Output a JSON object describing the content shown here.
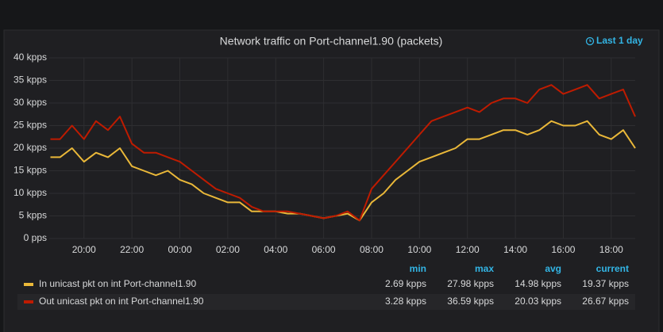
{
  "chart_data": {
    "type": "line",
    "title": "Network traffic on Port-channel1.90 (packets)",
    "time_range": "Last 1 day",
    "x": [
      18.6,
      19,
      19.5,
      20,
      20.5,
      21,
      21.5,
      22,
      22.5,
      23,
      23.5,
      24,
      24.5,
      25,
      25.5,
      26,
      26.5,
      27,
      27.5,
      28,
      28.5,
      29,
      29.5,
      30,
      30.5,
      31,
      31.5,
      32,
      32.5,
      33,
      33.5,
      34,
      34.5,
      35,
      35.5,
      36,
      36.5,
      37,
      37.5,
      38,
      38.5,
      39,
      39.5,
      40,
      40.5,
      41,
      41.5,
      42,
      42.5,
      43
    ],
    "xlim": [
      18.55,
      43.0
    ],
    "xticks": [
      {
        "value": 20,
        "label": "20:00"
      },
      {
        "value": 22,
        "label": "22:00"
      },
      {
        "value": 24,
        "label": "00:00"
      },
      {
        "value": 26,
        "label": "02:00"
      },
      {
        "value": 28,
        "label": "04:00"
      },
      {
        "value": 30,
        "label": "06:00"
      },
      {
        "value": 32,
        "label": "08:00"
      },
      {
        "value": 34,
        "label": "10:00"
      },
      {
        "value": 36,
        "label": "12:00"
      },
      {
        "value": 38,
        "label": "14:00"
      },
      {
        "value": 40,
        "label": "16:00"
      },
      {
        "value": 42,
        "label": "18:00"
      }
    ],
    "ylim": [
      0,
      40
    ],
    "yticks": [
      {
        "value": 0,
        "label": "0 pps"
      },
      {
        "value": 5,
        "label": "5 kpps"
      },
      {
        "value": 10,
        "label": "10 kpps"
      },
      {
        "value": 15,
        "label": "15 kpps"
      },
      {
        "value": 20,
        "label": "20 kpps"
      },
      {
        "value": 25,
        "label": "25 kpps"
      },
      {
        "value": 30,
        "label": "30 kpps"
      },
      {
        "value": 35,
        "label": "35 kpps"
      },
      {
        "value": 40,
        "label": "40 kpps"
      }
    ],
    "grid": true,
    "legend_columns": [
      "min",
      "max",
      "avg",
      "current"
    ],
    "series": [
      {
        "name": "In unicast pkt on int Port-channel1.90",
        "color": "#eab839",
        "values": [
          18,
          18,
          20,
          17,
          19,
          18,
          20,
          16,
          15,
          14,
          15,
          13,
          12,
          10,
          9,
          8,
          8,
          6,
          6,
          6,
          5.5,
          5.5,
          5,
          4.5,
          5,
          5.5,
          4,
          8,
          10,
          13,
          15,
          17,
          18,
          19,
          20,
          22,
          22,
          23,
          24,
          24,
          23,
          24,
          26,
          25,
          25,
          26,
          23,
          22,
          24,
          20
        ],
        "legend_values": [
          "2.69 kpps",
          "27.98 kpps",
          "14.98 kpps",
          "19.37 kpps"
        ]
      },
      {
        "name": "Out unicast pkt on int Port-channel1.90",
        "color": "#bf1b00",
        "values": [
          22,
          22,
          25,
          22,
          26,
          24,
          27,
          21,
          19,
          19,
          18,
          17,
          15,
          13,
          11,
          10,
          9,
          7,
          6,
          6,
          6,
          5.5,
          5,
          4.5,
          5,
          6,
          4,
          11,
          14,
          17,
          20,
          23,
          26,
          27,
          28,
          29,
          28,
          30,
          31,
          31,
          30,
          33,
          34,
          32,
          33,
          34,
          31,
          32,
          33,
          27
        ],
        "legend_values": [
          "3.28 kpps",
          "36.59 kpps",
          "20.03 kpps",
          "26.67 kpps"
        ]
      }
    ]
  }
}
